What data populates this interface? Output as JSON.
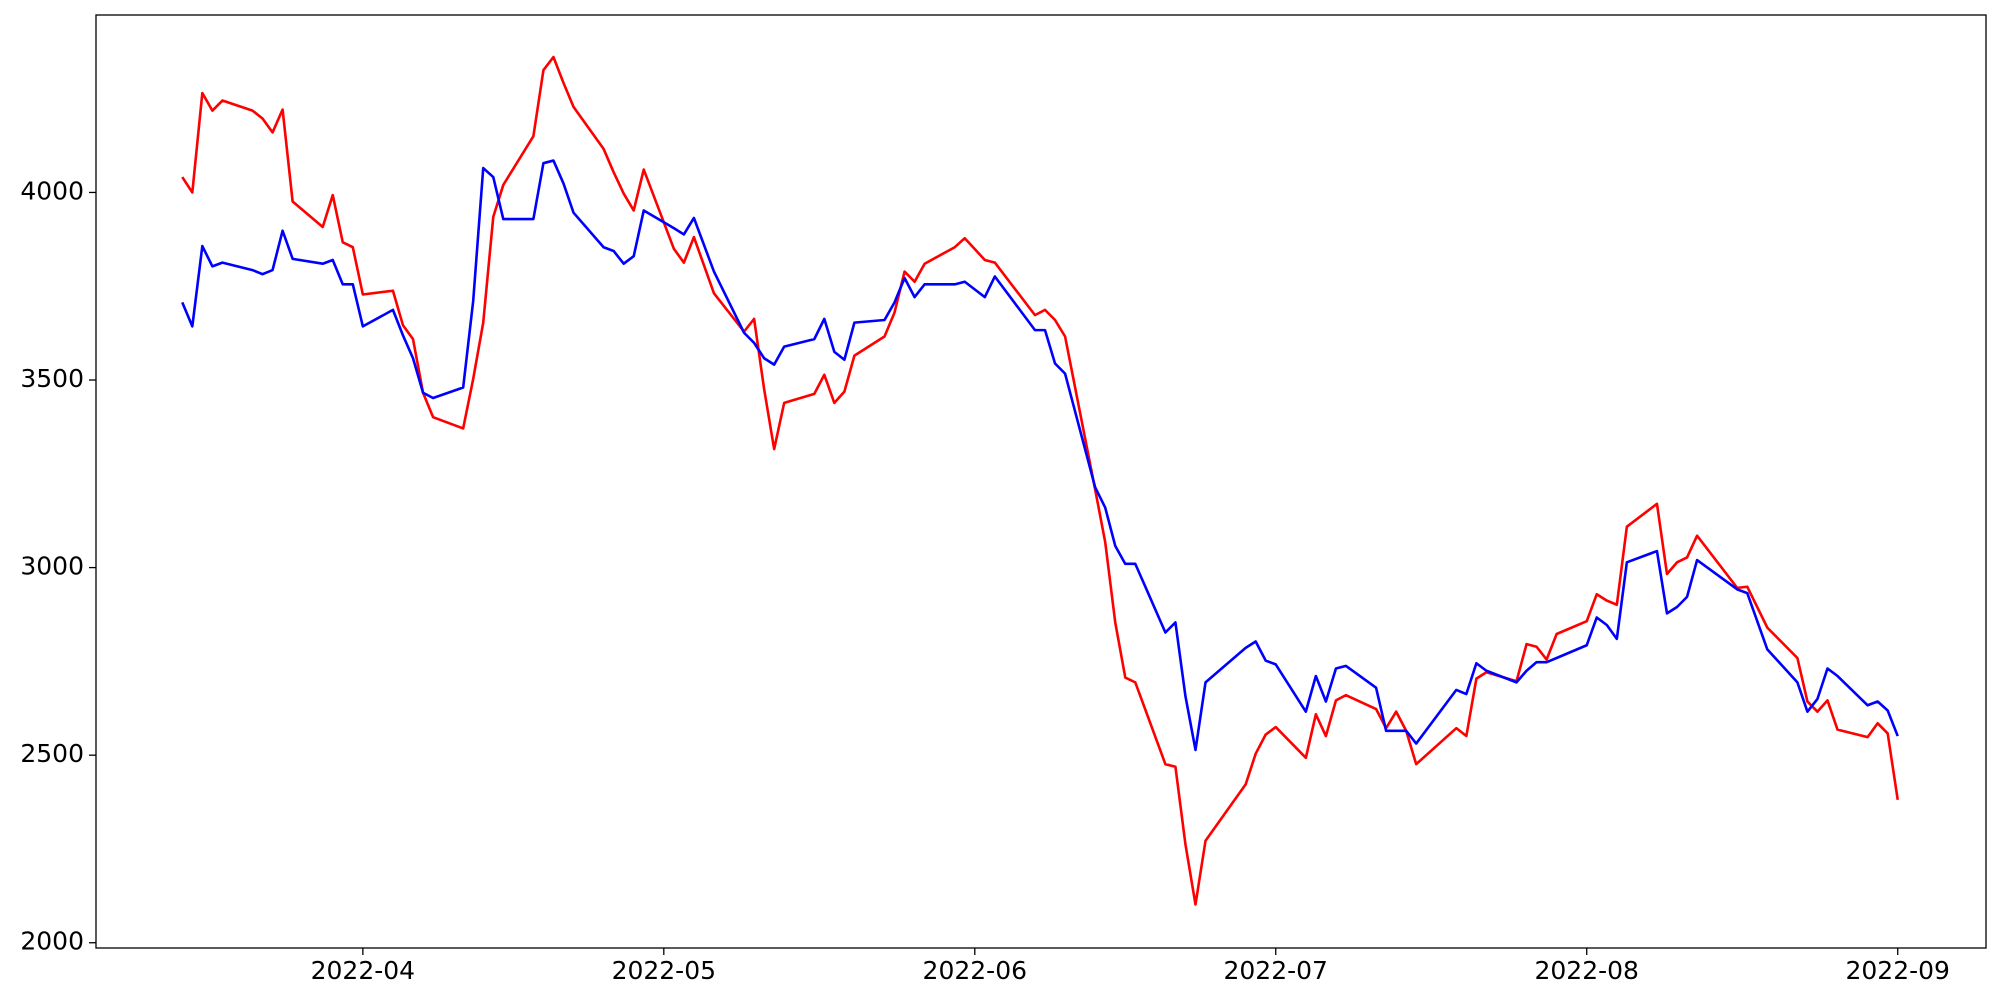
{
  "chart_data": {
    "type": "line",
    "x": [
      73,
      74,
      75,
      76,
      77,
      80,
      81,
      82,
      83,
      84,
      87,
      88,
      89,
      90,
      91,
      94,
      95,
      96,
      97,
      98,
      101,
      102,
      103,
      104,
      105,
      108,
      109,
      110,
      111,
      112,
      115,
      116,
      117,
      118,
      119,
      122,
      123,
      124,
      126,
      129,
      130,
      131,
      132,
      133,
      136,
      137,
      138,
      139,
      140,
      143,
      144,
      145,
      146,
      147,
      150,
      151,
      153,
      154,
      158,
      159,
      160,
      161,
      164,
      165,
      166,
      167,
      168,
      171,
      172,
      173,
      174,
      175,
      179,
      180,
      181,
      182,
      185,
      186,
      187,
      188,
      189,
      192,
      193,
      194,
      195,
      196,
      200,
      201,
      202,
      203,
      206,
      207,
      208,
      209,
      210,
      213,
      214,
      215,
      216,
      217,
      220,
      221,
      222,
      223,
      224,
      228,
      229,
      231,
      234,
      235,
      236,
      237,
      238,
      241,
      242,
      243,
      244
    ],
    "series": [
      {
        "color": "#ff0000",
        "values": [
          4041,
          4000,
          4265,
          4218,
          4245,
          4218,
          4197,
          4160,
          4221,
          3976,
          3908,
          3993,
          3867,
          3854,
          3728,
          3738,
          3646,
          3609,
          3466,
          3401,
          3371,
          3503,
          3653,
          3935,
          4020,
          4150,
          4326,
          4361,
          4292,
          4228,
          4116,
          4054,
          3997,
          3952,
          4061,
          3850,
          3813,
          3881,
          3731,
          3629,
          3663,
          3476,
          3316,
          3439,
          3463,
          3514,
          3439,
          3469,
          3565,
          3616,
          3680,
          3789,
          3762,
          3810,
          3854,
          3878,
          3820,
          3813,
          3673,
          3687,
          3660,
          3616,
          3208,
          3068,
          2854,
          2707,
          2694,
          2476,
          2469,
          2262,
          2102,
          2272,
          2422,
          2504,
          2555,
          2575,
          2493,
          2609,
          2551,
          2646,
          2660,
          2623,
          2572,
          2616,
          2565,
          2476,
          2572,
          2551,
          2704,
          2721,
          2697,
          2796,
          2789,
          2755,
          2823,
          2857,
          2929,
          2912,
          2901,
          3109,
          3170,
          2983,
          3014,
          3027,
          3085,
          2946,
          2949,
          2840,
          2759,
          2643,
          2616,
          2646,
          2568,
          2548,
          2585,
          2558,
          2381
        ]
      },
      {
        "color": "#0000ff",
        "values": [
          3707,
          3643,
          3857,
          3803,
          3813,
          3793,
          3782,
          3793,
          3898,
          3823,
          3810,
          3820,
          3755,
          3755,
          3643,
          3687,
          3619,
          3558,
          3466,
          3452,
          3480,
          3711,
          4065,
          4041,
          3929,
          3929,
          4078,
          4085,
          4024,
          3946,
          3854,
          3844,
          3810,
          3830,
          3952,
          3905,
          3888,
          3932,
          3789,
          3626,
          3599,
          3558,
          3541,
          3589,
          3609,
          3663,
          3575,
          3554,
          3653,
          3660,
          3707,
          3772,
          3721,
          3755,
          3755,
          3762,
          3721,
          3776,
          3633,
          3633,
          3544,
          3517,
          3214,
          3160,
          3058,
          3010,
          3010,
          2827,
          2854,
          2657,
          2514,
          2694,
          2786,
          2803,
          2752,
          2742,
          2616,
          2711,
          2643,
          2731,
          2738,
          2680,
          2565,
          2565,
          2565,
          2531,
          2674,
          2663,
          2745,
          2725,
          2694,
          2725,
          2748,
          2748,
          2759,
          2793,
          2867,
          2847,
          2810,
          3014,
          3044,
          2878,
          2895,
          2922,
          3020,
          2942,
          2932,
          2782,
          2694,
          2616,
          2650,
          2731,
          2711,
          2633,
          2643,
          2619,
          2551
        ]
      }
    ],
    "xlim": [
      64.4,
      252.8
    ],
    "xticks": [
      {
        "value": 91,
        "label": "2022-04"
      },
      {
        "value": 121,
        "label": "2022-05"
      },
      {
        "value": 152,
        "label": "2022-06"
      },
      {
        "value": 182,
        "label": "2022-07"
      },
      {
        "value": 213,
        "label": "2022-08"
      },
      {
        "value": 244,
        "label": "2022-09"
      }
    ],
    "ylim": [
      1986,
      4473
    ],
    "yticks": [
      2000,
      2500,
      3000,
      3500,
      4000
    ]
  }
}
